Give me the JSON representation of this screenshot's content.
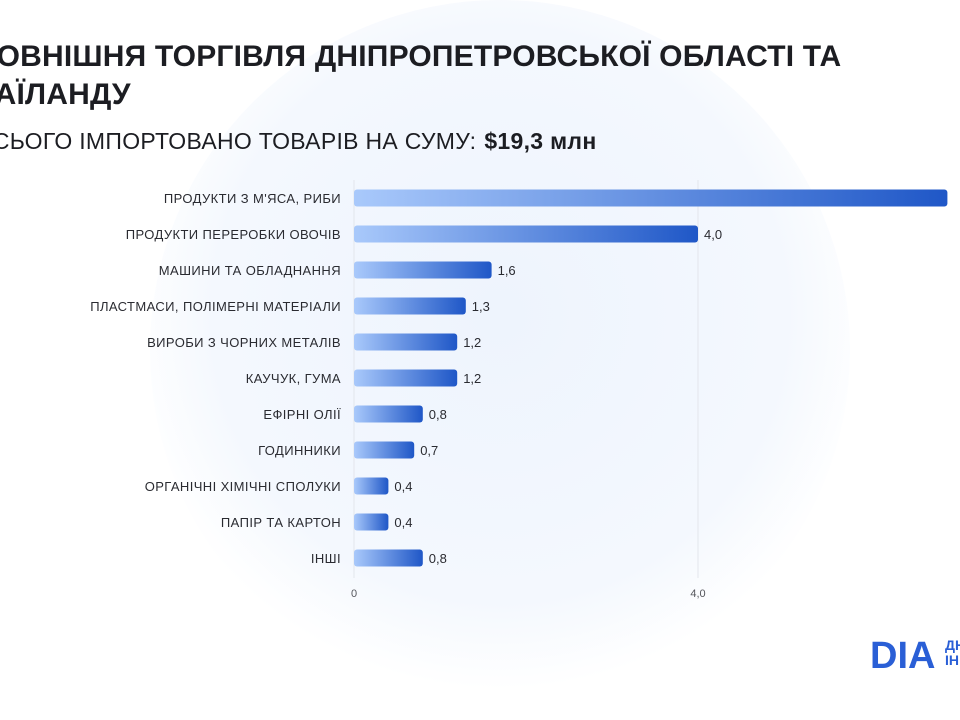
{
  "header": {
    "title": "ЗОВНІШНЯ ТОРГІВЛЯ ДНІПРОПЕТРОВСЬКОЇ ОБЛАСТІ ТА ТАЇЛАНДУ",
    "subtitle_prefix": "ВСЬОГО ІМПОРТОВАНО ТОВАРІВ НА СУМУ:",
    "subtitle_total": "$19,3 млн"
  },
  "chart_data": {
    "type": "bar",
    "orientation": "horizontal",
    "categories": [
      "ПРОДУКТИ З М'ЯСА, РИБИ",
      "ПРОДУКТИ ПЕРЕРОБКИ ОВОЧІВ",
      "МАШИНИ ТА ОБЛАДНАННЯ",
      "ПЛАСТМАСИ, ПОЛІМЕРНІ МАТЕРІАЛИ",
      "ВИРОБИ З ЧОРНИХ МЕТАЛІВ",
      "КАУЧУК, ГУМА",
      "ЕФІРНІ ОЛІЇ",
      "ГОДИННИКИ",
      "ОРГАНІЧНІ ХІМІЧНІ СПОЛУКИ",
      "ПАПІР ТА КАРТОН",
      "ІНШІ"
    ],
    "values": [
      6.9,
      4.0,
      1.6,
      1.3,
      1.2,
      1.2,
      0.8,
      0.7,
      0.4,
      0.4,
      0.8
    ],
    "value_labels": [
      "",
      "4,0",
      "1,6",
      "1,3",
      "1,2",
      "1,2",
      "0,8",
      "0,7",
      "0,4",
      "0,4",
      "0,8"
    ],
    "xticks": [
      0,
      4.0
    ],
    "xtick_labels": [
      "0",
      "4,0"
    ],
    "grid": true,
    "colors": {
      "bar_start": "#a9c9fb",
      "bar_end": "#1f57c7",
      "grid": "#e3e6ec"
    }
  },
  "logo": {
    "mark": "DIA",
    "text_line1": "ДН",
    "text_line2": "ІН"
  }
}
